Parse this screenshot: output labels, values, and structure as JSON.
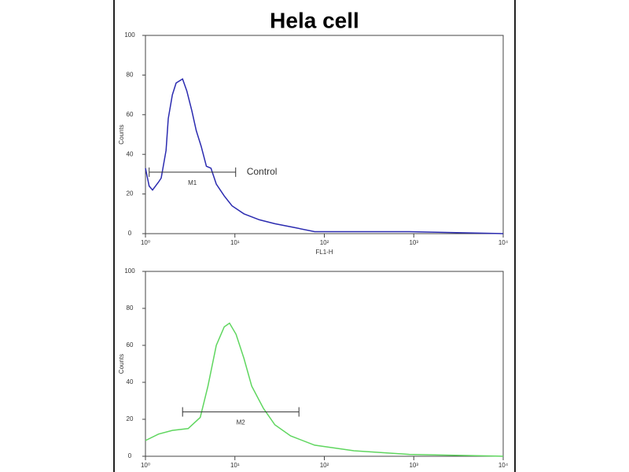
{
  "title": "Hela cell",
  "chart_data": [
    {
      "type": "line",
      "xscale": "log",
      "xlabel": "FL1-H",
      "ylabel": "Counts",
      "xlim": [
        1,
        10000
      ],
      "xticks": [
        {
          "value": 1,
          "label": "10⁰"
        },
        {
          "value": 10,
          "label": "10¹"
        },
        {
          "value": 100,
          "label": "10²"
        },
        {
          "value": 1000,
          "label": "10³"
        },
        {
          "value": 10000,
          "label": "10⁴"
        }
      ],
      "ylim": [
        0,
        100
      ],
      "yticks": [
        0,
        20,
        40,
        60,
        80,
        100
      ],
      "series": [
        {
          "color": "#2b2bb0",
          "x": [
            1,
            1.1,
            1.2,
            1.4,
            1.5,
            1.7,
            1.8,
            2.0,
            2.2,
            2.6,
            2.9,
            3.3,
            3.7,
            4.2,
            4.8,
            5.4,
            6.2,
            7.6,
            9.3,
            12.6,
            18.8,
            28,
            47,
            78,
            214,
            890,
            10000
          ],
          "values": [
            33,
            24,
            22,
            26,
            28,
            42,
            58,
            70,
            76,
            78,
            72,
            62,
            52,
            44,
            34,
            33,
            25,
            19,
            14,
            10,
            7,
            5,
            3,
            1,
            1,
            1,
            0
          ]
        }
      ],
      "gate": {
        "label": "M1",
        "x0": 1.1,
        "x1": 10.2,
        "y": 31,
        "note": "Control"
      }
    },
    {
      "type": "line",
      "xscale": "log",
      "ylabel": "Counts",
      "xlim": [
        1,
        10000
      ],
      "xticks": [
        {
          "value": 1,
          "label": "10⁰"
        },
        {
          "value": 10,
          "label": "10¹"
        },
        {
          "value": 100,
          "label": "10²"
        },
        {
          "value": 1000,
          "label": "10³"
        },
        {
          "value": 10000,
          "label": "10⁴"
        }
      ],
      "ylim": [
        0,
        100
      ],
      "yticks": [
        0,
        20,
        40,
        60,
        80,
        100
      ],
      "series": [
        {
          "color": "#5fd65f",
          "x": [
            1,
            1.4,
            2.0,
            3.0,
            4.1,
            5.0,
            6.2,
            7.6,
            8.7,
            10.3,
            12.6,
            15.4,
            20.8,
            28,
            42,
            78,
            214,
            890,
            10000
          ],
          "values": [
            8.5,
            12,
            14,
            15,
            21,
            38,
            60,
            70,
            72,
            66,
            53,
            38,
            26,
            17,
            11,
            6,
            3,
            1,
            0
          ]
        }
      ],
      "gate": {
        "label": "M2",
        "x0": 2.6,
        "x1": 52,
        "y": 24
      }
    }
  ]
}
